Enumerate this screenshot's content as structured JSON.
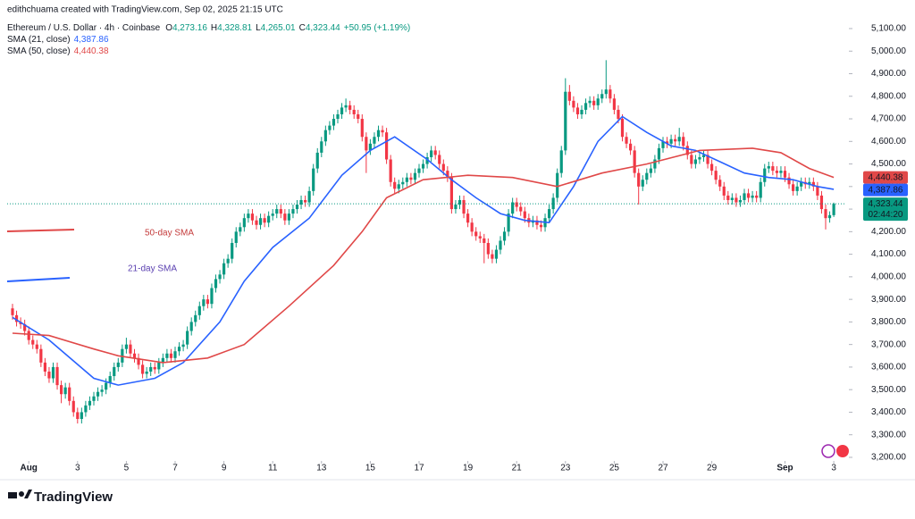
{
  "chart_data": {
    "type": "candlestick",
    "credit": "edithchuama created with TradingView.com, Sep 02, 2025 21:15 UTC",
    "title": "Ethereum / U.S. Dollar · 4h · Coinbase",
    "ohlc_header": [
      {
        "label": "O",
        "value": "4,273.16"
      },
      {
        "label": "H",
        "value": "4,328.81"
      },
      {
        "label": "L",
        "value": "4,265.01"
      },
      {
        "label": "C",
        "value": "4,323.44"
      }
    ],
    "change": "+50.95 (+1.19%)",
    "up_color": "#089981",
    "down_color": "#f23645",
    "ylim": [
      3188,
      5187
    ],
    "yticks": [
      {
        "value": 3200,
        "label": "3,200.00"
      },
      {
        "value": 3300,
        "label": "3,300.00"
      },
      {
        "value": 3400,
        "label": "3,400.00"
      },
      {
        "value": 3500,
        "label": "3,500.00"
      },
      {
        "value": 3600,
        "label": "3,600.00"
      },
      {
        "value": 3700,
        "label": "3,700.00"
      },
      {
        "value": 3800,
        "label": "3,800.00"
      },
      {
        "value": 3900,
        "label": "3,900.00"
      },
      {
        "value": 4000,
        "label": "4,000.00"
      },
      {
        "value": 4100,
        "label": "4,100.00"
      },
      {
        "value": 4200,
        "label": "4,200.00"
      },
      {
        "value": 4300,
        "label": "4,300.00"
      },
      {
        "value": 4400,
        "label": "4,400.00"
      },
      {
        "value": 4500,
        "label": "4,500.00"
      },
      {
        "value": 4600,
        "label": "4,600.00"
      },
      {
        "value": 4700,
        "label": "4,700.00"
      },
      {
        "value": 4800,
        "label": "4,800.00"
      },
      {
        "value": 4900,
        "label": "4,900.00"
      },
      {
        "value": 5000,
        "label": "5,000.00"
      },
      {
        "value": 5100,
        "label": "5,100.00"
      }
    ],
    "xticks": [
      {
        "value": 4,
        "label": "Aug"
      },
      {
        "value": 16,
        "label": "3"
      },
      {
        "value": 28,
        "label": "5"
      },
      {
        "value": 40,
        "label": "7"
      },
      {
        "value": 52,
        "label": "9"
      },
      {
        "value": 64,
        "label": "11"
      },
      {
        "value": 76,
        "label": "13"
      },
      {
        "value": 88,
        "label": "15"
      },
      {
        "value": 100,
        "label": "17"
      },
      {
        "value": 112,
        "label": "19"
      },
      {
        "value": 124,
        "label": "21"
      },
      {
        "value": 136,
        "label": "23"
      },
      {
        "value": 148,
        "label": "25"
      },
      {
        "value": 160,
        "label": "27"
      },
      {
        "value": 172,
        "label": "29"
      },
      {
        "value": 190,
        "label": "Sep"
      },
      {
        "value": 202,
        "label": "3"
      }
    ],
    "ohlc": [
      [
        3860,
        3880,
        3810,
        3830
      ],
      [
        3830,
        3850,
        3780,
        3800
      ],
      [
        3800,
        3820,
        3770,
        3790
      ],
      [
        3790,
        3810,
        3740,
        3760
      ],
      [
        3760,
        3780,
        3700,
        3720
      ],
      [
        3720,
        3740,
        3680,
        3700
      ],
      [
        3700,
        3720,
        3660,
        3680
      ],
      [
        3680,
        3700,
        3600,
        3620
      ],
      [
        3620,
        3640,
        3560,
        3580
      ],
      [
        3580,
        3600,
        3530,
        3550
      ],
      [
        3550,
        3620,
        3530,
        3600
      ],
      [
        3600,
        3620,
        3500,
        3520
      ],
      [
        3520,
        3540,
        3440,
        3480
      ],
      [
        3480,
        3530,
        3460,
        3510
      ],
      [
        3510,
        3530,
        3430,
        3450
      ],
      [
        3450,
        3470,
        3380,
        3400
      ],
      [
        3400,
        3420,
        3350,
        3370
      ],
      [
        3370,
        3420,
        3350,
        3400
      ],
      [
        3400,
        3450,
        3380,
        3430
      ],
      [
        3430,
        3470,
        3410,
        3450
      ],
      [
        3450,
        3490,
        3430,
        3470
      ],
      [
        3470,
        3510,
        3450,
        3490
      ],
      [
        3490,
        3520,
        3470,
        3500
      ],
      [
        3500,
        3550,
        3480,
        3530
      ],
      [
        3530,
        3580,
        3510,
        3560
      ],
      [
        3560,
        3620,
        3540,
        3600
      ],
      [
        3600,
        3640,
        3580,
        3620
      ],
      [
        3620,
        3700,
        3600,
        3680
      ],
      [
        3680,
        3730,
        3660,
        3700
      ],
      [
        3700,
        3720,
        3640,
        3660
      ],
      [
        3660,
        3680,
        3620,
        3640
      ],
      [
        3640,
        3660,
        3590,
        3610
      ],
      [
        3610,
        3630,
        3550,
        3570
      ],
      [
        3570,
        3600,
        3550,
        3580
      ],
      [
        3580,
        3620,
        3560,
        3600
      ],
      [
        3600,
        3620,
        3570,
        3590
      ],
      [
        3590,
        3640,
        3570,
        3620
      ],
      [
        3620,
        3660,
        3600,
        3640
      ],
      [
        3640,
        3680,
        3620,
        3660
      ],
      [
        3660,
        3680,
        3620,
        3640
      ],
      [
        3640,
        3690,
        3620,
        3670
      ],
      [
        3670,
        3710,
        3650,
        3690
      ],
      [
        3690,
        3720,
        3670,
        3700
      ],
      [
        3700,
        3780,
        3680,
        3760
      ],
      [
        3760,
        3820,
        3740,
        3800
      ],
      [
        3800,
        3850,
        3780,
        3830
      ],
      [
        3830,
        3890,
        3810,
        3870
      ],
      [
        3870,
        3920,
        3850,
        3900
      ],
      [
        3900,
        3920,
        3860,
        3880
      ],
      [
        3880,
        3970,
        3860,
        3950
      ],
      [
        3950,
        4010,
        3930,
        3990
      ],
      [
        3990,
        4030,
        3970,
        4010
      ],
      [
        4010,
        4080,
        3990,
        4060
      ],
      [
        4060,
        4100,
        4040,
        4080
      ],
      [
        4080,
        4170,
        4060,
        4150
      ],
      [
        4150,
        4220,
        4130,
        4200
      ],
      [
        4200,
        4240,
        4180,
        4220
      ],
      [
        4220,
        4280,
        4200,
        4260
      ],
      [
        4260,
        4300,
        4240,
        4280
      ],
      [
        4280,
        4300,
        4230,
        4250
      ],
      [
        4250,
        4270,
        4210,
        4230
      ],
      [
        4230,
        4280,
        4210,
        4260
      ],
      [
        4260,
        4280,
        4220,
        4240
      ],
      [
        4240,
        4290,
        4220,
        4270
      ],
      [
        4270,
        4300,
        4250,
        4280
      ],
      [
        4280,
        4320,
        4260,
        4300
      ],
      [
        4300,
        4320,
        4260,
        4280
      ],
      [
        4280,
        4300,
        4230,
        4250
      ],
      [
        4250,
        4300,
        4230,
        4280
      ],
      [
        4280,
        4320,
        4260,
        4300
      ],
      [
        4300,
        4340,
        4280,
        4320
      ],
      [
        4320,
        4360,
        4300,
        4340
      ],
      [
        4340,
        4360,
        4310,
        4330
      ],
      [
        4330,
        4400,
        4310,
        4380
      ],
      [
        4380,
        4500,
        4360,
        4480
      ],
      [
        4480,
        4570,
        4460,
        4550
      ],
      [
        4550,
        4620,
        4530,
        4600
      ],
      [
        4600,
        4670,
        4580,
        4650
      ],
      [
        4650,
        4690,
        4630,
        4670
      ],
      [
        4670,
        4720,
        4650,
        4700
      ],
      [
        4700,
        4740,
        4680,
        4720
      ],
      [
        4720,
        4770,
        4700,
        4750
      ],
      [
        4750,
        4790,
        4730,
        4760
      ],
      [
        4760,
        4780,
        4720,
        4740
      ],
      [
        4740,
        4760,
        4700,
        4720
      ],
      [
        4720,
        4740,
        4680,
        4700
      ],
      [
        4700,
        4720,
        4600,
        4620
      ],
      [
        4620,
        4640,
        4460,
        4560
      ],
      [
        4560,
        4610,
        4540,
        4590
      ],
      [
        4590,
        4640,
        4570,
        4620
      ],
      [
        4620,
        4670,
        4600,
        4650
      ],
      [
        4650,
        4670,
        4620,
        4640
      ],
      [
        4640,
        4660,
        4500,
        4520
      ],
      [
        4520,
        4540,
        4400,
        4420
      ],
      [
        4420,
        4440,
        4370,
        4390
      ],
      [
        4390,
        4430,
        4370,
        4410
      ],
      [
        4410,
        4440,
        4390,
        4420
      ],
      [
        4420,
        4460,
        4400,
        4440
      ],
      [
        4440,
        4460,
        4410,
        4430
      ],
      [
        4430,
        4480,
        4410,
        4460
      ],
      [
        4460,
        4500,
        4440,
        4480
      ],
      [
        4480,
        4520,
        4460,
        4500
      ],
      [
        4500,
        4550,
        4480,
        4530
      ],
      [
        4530,
        4580,
        4510,
        4560
      ],
      [
        4560,
        4580,
        4520,
        4540
      ],
      [
        4540,
        4560,
        4480,
        4500
      ],
      [
        4500,
        4520,
        4450,
        4470
      ],
      [
        4470,
        4490,
        4420,
        4440
      ],
      [
        4440,
        4460,
        4280,
        4300
      ],
      [
        4300,
        4340,
        4280,
        4320
      ],
      [
        4320,
        4360,
        4300,
        4340
      ],
      [
        4340,
        4360,
        4260,
        4280
      ],
      [
        4280,
        4300,
        4220,
        4240
      ],
      [
        4240,
        4260,
        4180,
        4200
      ],
      [
        4200,
        4220,
        4160,
        4180
      ],
      [
        4180,
        4200,
        4150,
        4170
      ],
      [
        4170,
        4190,
        4060,
        4150
      ],
      [
        4150,
        4170,
        4080,
        4100
      ],
      [
        4100,
        4120,
        4060,
        4080
      ],
      [
        4080,
        4140,
        4060,
        4120
      ],
      [
        4120,
        4180,
        4100,
        4160
      ],
      [
        4160,
        4220,
        4140,
        4200
      ],
      [
        4200,
        4300,
        4180,
        4280
      ],
      [
        4280,
        4350,
        4260,
        4330
      ],
      [
        4330,
        4350,
        4290,
        4310
      ],
      [
        4310,
        4330,
        4270,
        4290
      ],
      [
        4290,
        4310,
        4240,
        4260
      ],
      [
        4260,
        4280,
        4220,
        4240
      ],
      [
        4240,
        4270,
        4220,
        4250
      ],
      [
        4250,
        4270,
        4210,
        4230
      ],
      [
        4230,
        4250,
        4200,
        4220
      ],
      [
        4220,
        4280,
        4200,
        4260
      ],
      [
        4260,
        4320,
        4240,
        4300
      ],
      [
        4300,
        4370,
        4280,
        4350
      ],
      [
        4350,
        4480,
        4330,
        4460
      ],
      [
        4460,
        4580,
        4440,
        4560
      ],
      [
        4560,
        4880,
        4540,
        4820
      ],
      [
        4820,
        4850,
        4760,
        4780
      ],
      [
        4780,
        4800,
        4730,
        4750
      ],
      [
        4750,
        4770,
        4700,
        4720
      ],
      [
        4720,
        4760,
        4700,
        4740
      ],
      [
        4740,
        4790,
        4720,
        4770
      ],
      [
        4770,
        4800,
        4750,
        4780
      ],
      [
        4780,
        4800,
        4740,
        4760
      ],
      [
        4760,
        4810,
        4740,
        4790
      ],
      [
        4790,
        4830,
        4770,
        4810
      ],
      [
        4810,
        4960,
        4790,
        4830
      ],
      [
        4830,
        4850,
        4770,
        4790
      ],
      [
        4790,
        4810,
        4720,
        4740
      ],
      [
        4740,
        4760,
        4680,
        4700
      ],
      [
        4700,
        4720,
        4600,
        4620
      ],
      [
        4620,
        4640,
        4570,
        4590
      ],
      [
        4590,
        4610,
        4540,
        4560
      ],
      [
        4560,
        4580,
        4440,
        4460
      ],
      [
        4460,
        4480,
        4320,
        4400
      ],
      [
        4400,
        4450,
        4380,
        4430
      ],
      [
        4430,
        4480,
        4410,
        4460
      ],
      [
        4460,
        4500,
        4440,
        4480
      ],
      [
        4480,
        4540,
        4460,
        4520
      ],
      [
        4520,
        4590,
        4500,
        4570
      ],
      [
        4570,
        4620,
        4550,
        4600
      ],
      [
        4600,
        4620,
        4570,
        4590
      ],
      [
        4590,
        4630,
        4570,
        4610
      ],
      [
        4610,
        4630,
        4580,
        4600
      ],
      [
        4600,
        4660,
        4580,
        4620
      ],
      [
        4620,
        4640,
        4560,
        4580
      ],
      [
        4580,
        4600,
        4520,
        4540
      ],
      [
        4540,
        4560,
        4480,
        4500
      ],
      [
        4500,
        4540,
        4480,
        4520
      ],
      [
        4520,
        4550,
        4500,
        4530
      ],
      [
        4530,
        4560,
        4510,
        4540
      ],
      [
        4540,
        4560,
        4480,
        4500
      ],
      [
        4500,
        4520,
        4450,
        4470
      ],
      [
        4470,
        4490,
        4410,
        4430
      ],
      [
        4430,
        4450,
        4380,
        4400
      ],
      [
        4400,
        4420,
        4340,
        4360
      ],
      [
        4360,
        4380,
        4320,
        4340
      ],
      [
        4340,
        4370,
        4320,
        4350
      ],
      [
        4350,
        4370,
        4310,
        4330
      ],
      [
        4330,
        4360,
        4310,
        4340
      ],
      [
        4340,
        4390,
        4320,
        4370
      ],
      [
        4370,
        4390,
        4330,
        4350
      ],
      [
        4350,
        4380,
        4330,
        4360
      ],
      [
        4360,
        4380,
        4330,
        4350
      ],
      [
        4350,
        4440,
        4330,
        4420
      ],
      [
        4420,
        4500,
        4400,
        4480
      ],
      [
        4480,
        4510,
        4460,
        4490
      ],
      [
        4490,
        4510,
        4450,
        4470
      ],
      [
        4470,
        4490,
        4440,
        4460
      ],
      [
        4460,
        4490,
        4440,
        4470
      ],
      [
        4470,
        4490,
        4420,
        4440
      ],
      [
        4440,
        4460,
        4390,
        4410
      ],
      [
        4410,
        4430,
        4360,
        4380
      ],
      [
        4380,
        4420,
        4360,
        4400
      ],
      [
        4400,
        4440,
        4380,
        4420
      ],
      [
        4420,
        4440,
        4390,
        4410
      ],
      [
        4410,
        4440,
        4390,
        4420
      ],
      [
        4420,
        4440,
        4380,
        4400
      ],
      [
        4400,
        4420,
        4340,
        4360
      ],
      [
        4360,
        4380,
        4280,
        4300
      ],
      [
        4300,
        4320,
        4210,
        4260
      ],
      [
        4260,
        4290,
        4240,
        4273.16
      ],
      [
        4273.16,
        4328.81,
        4265.01,
        4323.44
      ]
    ],
    "last_price_label": "4,323.44",
    "countdown": "02:44:20",
    "series": [
      {
        "name": "SMA (21, close)",
        "color": "#2962ff",
        "value_label": "4,387.86",
        "x": [
          0,
          9,
          20,
          26,
          35,
          42,
          51,
          57,
          64,
          73,
          81,
          88,
          94,
          102,
          108,
          114,
          120,
          126,
          132,
          138,
          144,
          150,
          156,
          162,
          168,
          174,
          180,
          186,
          192,
          198,
          202
        ],
        "values": [
          3820,
          3720,
          3550,
          3520,
          3550,
          3620,
          3800,
          3980,
          4130,
          4260,
          4450,
          4560,
          4620,
          4520,
          4430,
          4350,
          4280,
          4250,
          4240,
          4400,
          4600,
          4710,
          4640,
          4580,
          4560,
          4510,
          4460,
          4440,
          4430,
          4400,
          4387.86
        ]
      },
      {
        "name": "SMA (50, close)",
        "color": "#e04848",
        "value_label": "4,440.38",
        "x": [
          0,
          9,
          20,
          26,
          37,
          48,
          57,
          68,
          79,
          86,
          92,
          101,
          112,
          123,
          134,
          145,
          156,
          169,
          182,
          189,
          196,
          202
        ],
        "values": [
          3750,
          3740,
          3680,
          3650,
          3620,
          3640,
          3700,
          3870,
          4050,
          4200,
          4350,
          4430,
          4450,
          4440,
          4400,
          4460,
          4500,
          4560,
          4570,
          4550,
          4480,
          4440.38
        ]
      }
    ],
    "annotations": [
      "50-day SMA",
      "21-day SMA"
    ],
    "brand": "TradingView"
  }
}
